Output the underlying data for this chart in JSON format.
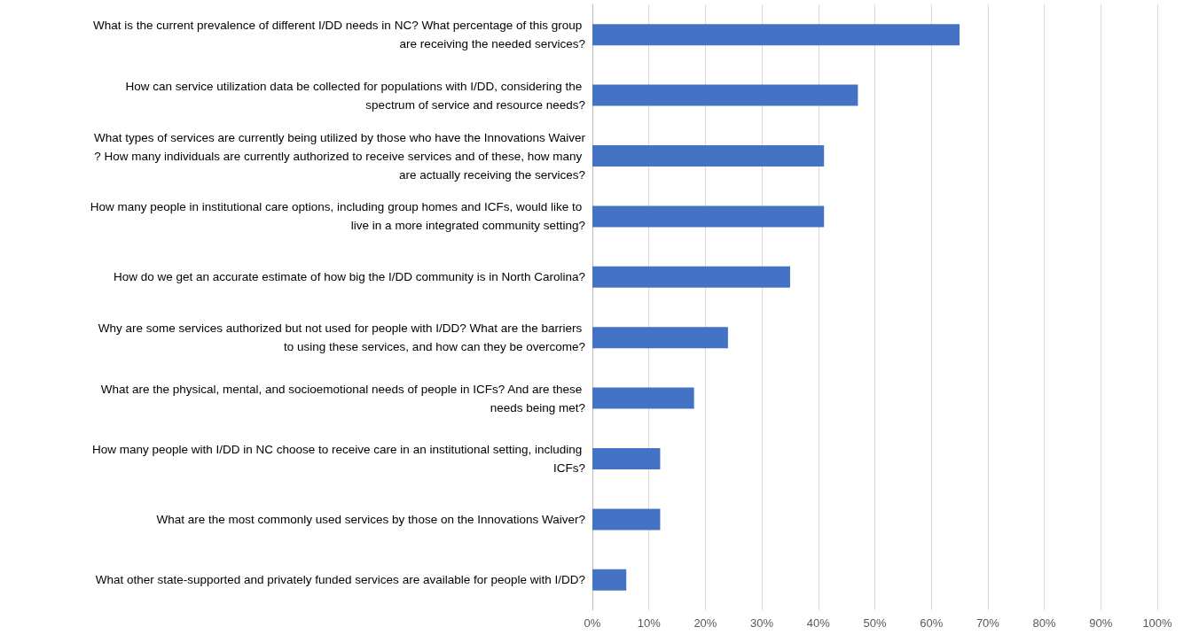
{
  "chart_data": {
    "type": "bar",
    "orientation": "horizontal",
    "categories": [
      "What is the current prevalence of different I/DD needs in NC? What percentage of this group are receiving the needed services?",
      "How can service utilization data be collected for populations with I/DD, considering the spectrum of service and resource needs?",
      "What types of services are currently being utilized by those who have the Innovations Waiver? How many individuals are currently authorized to receive services and of these, how many are actually receiving the services?",
      "How many people in institutional care options, including group homes and ICFs, would like to live in a more integrated community setting?",
      "How do we get an accurate estimate of how big the I/DD community is in North Carolina?",
      "Why are some services authorized but not used for people with I/DD? What are the barriers to using these services, and how can they be overcome?",
      "What are the physical, mental, and socioemotional needs of people in ICFs? And are these needs being met?",
      "How many people with I/DD in NC choose to receive care in an institutional setting, including ICFs?",
      "What are the most commonly used services by those on the Innovations Waiver?",
      "What other state-supported and privately funded services are available for people with I/DD?"
    ],
    "values": [
      65,
      47,
      41,
      41,
      35,
      24,
      18,
      12,
      12,
      6
    ],
    "color": "#4472c4",
    "xlim": [
      0,
      100
    ],
    "xticks": [
      {
        "value": 0,
        "label": "0%"
      },
      {
        "value": 10,
        "label": "10%"
      },
      {
        "value": 20,
        "label": "20%"
      },
      {
        "value": 30,
        "label": "30%"
      },
      {
        "value": 40,
        "label": "40%"
      },
      {
        "value": 50,
        "label": "50%"
      },
      {
        "value": 60,
        "label": "60%"
      },
      {
        "value": 70,
        "label": "70%"
      },
      {
        "value": 80,
        "label": "80%"
      },
      {
        "value": 90,
        "label": "90%"
      },
      {
        "value": 100,
        "label": "100%"
      }
    ],
    "grid": "x"
  }
}
